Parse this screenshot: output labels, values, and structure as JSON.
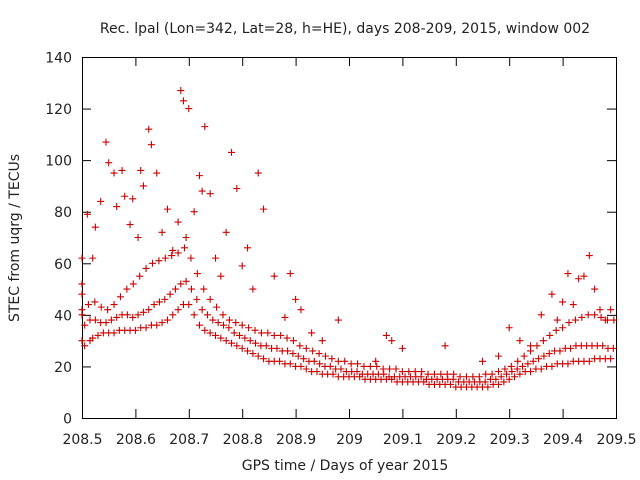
{
  "chart_data": {
    "type": "scatter",
    "title": "Rec. lpal (Lon=342, Lat=28, h=HE), days 208-209, 2015, window 002",
    "xlabel": "GPS time / Days of year 2015",
    "ylabel": "STEC from uqrg / TECUs",
    "xlim": [
      208.5,
      209.5
    ],
    "ylim": [
      0,
      140
    ],
    "xticks": [
      "208.5",
      "208.6",
      "208.7",
      "208.8",
      "208.9",
      "209",
      "209.1",
      "209.2",
      "209.3",
      "209.4",
      "209.5"
    ],
    "yticks": [
      "0",
      "20",
      "40",
      "60",
      "80",
      "100",
      "120",
      "140"
    ],
    "grid": false,
    "marker": "+",
    "color": "#cc0000",
    "series": [
      {
        "x": [
          208.5,
          208.5,
          208.5,
          208.5,
          208.505,
          208.515,
          208.52,
          208.53,
          208.54,
          208.55,
          208.56,
          208.57,
          208.58,
          208.59,
          208.6,
          208.61,
          208.62,
          208.63,
          208.64,
          208.65,
          208.66,
          208.67,
          208.68,
          208.69,
          208.7,
          208.71,
          208.72,
          208.73,
          208.74,
          208.75,
          208.76,
          208.77,
          208.78,
          208.79,
          208.8,
          208.81,
          208.82,
          208.83,
          208.84,
          208.85,
          208.86,
          208.87,
          208.88,
          208.89,
          208.9,
          208.91,
          208.92,
          208.93,
          208.94,
          208.95,
          208.96,
          208.97,
          208.98,
          208.99,
          209.0,
          209.01,
          209.02,
          209.03,
          209.04,
          209.05,
          209.06,
          209.07,
          209.08,
          209.09,
          209.1,
          209.11,
          209.12,
          209.13,
          209.14,
          209.15,
          209.16,
          209.17,
          209.18,
          209.19,
          209.2,
          209.21,
          209.22,
          209.23,
          209.24,
          209.25,
          209.26,
          209.27,
          209.28,
          209.29,
          209.3,
          209.31,
          209.32,
          209.33,
          209.34,
          209.35,
          209.36,
          209.37,
          209.38,
          209.39,
          209.4,
          209.41,
          209.42,
          209.43,
          209.44,
          209.45,
          209.46,
          209.47,
          209.48,
          209.49
        ],
        "y": [
          62,
          52,
          40,
          30,
          28,
          30,
          31,
          32,
          33,
          33,
          33,
          34,
          34,
          34,
          34,
          35,
          35,
          36,
          36,
          37,
          38,
          40,
          42,
          44,
          44,
          40,
          36,
          34,
          33,
          32,
          31,
          30,
          29,
          28,
          27,
          26,
          25,
          24,
          23,
          22,
          22,
          22,
          21,
          21,
          20,
          20,
          19,
          18,
          18,
          17,
          17,
          17,
          16,
          16,
          16,
          16,
          16,
          15,
          15,
          15,
          15,
          15,
          15,
          14,
          14,
          14,
          14,
          14,
          14,
          13,
          13,
          13,
          13,
          13,
          12,
          12,
          12,
          12,
          12,
          12,
          12,
          13,
          13,
          14,
          15,
          16,
          17,
          18,
          18,
          19,
          19,
          20,
          20,
          21,
          21,
          21,
          22,
          22,
          22,
          22,
          23,
          23,
          23,
          23
        ]
      },
      {
        "x": [
          208.505,
          208.515,
          208.525,
          208.535,
          208.545,
          208.555,
          208.565,
          208.575,
          208.585,
          208.595,
          208.605,
          208.615,
          208.625,
          208.635,
          208.645,
          208.655,
          208.665,
          208.675,
          208.685,
          208.695,
          208.705,
          208.715,
          208.725,
          208.735,
          208.745,
          208.755,
          208.765,
          208.775,
          208.785,
          208.795,
          208.805,
          208.815,
          208.825,
          208.835,
          208.845,
          208.855,
          208.865,
          208.875,
          208.885,
          208.895,
          208.905,
          208.915,
          208.925,
          208.935,
          208.945,
          208.955,
          208.965,
          208.975,
          208.985,
          208.995,
          209.005,
          209.015,
          209.025,
          209.035,
          209.045,
          209.055,
          209.065,
          209.075,
          209.085,
          209.095,
          209.105,
          209.115,
          209.125,
          209.135,
          209.145,
          209.155,
          209.165,
          209.175,
          209.185,
          209.195,
          209.205,
          209.215,
          209.225,
          209.235,
          209.245,
          209.255,
          209.265,
          209.275,
          209.285,
          209.295,
          209.305,
          209.315,
          209.325,
          209.335,
          209.345,
          209.355,
          209.365,
          209.375,
          209.385,
          209.395,
          209.405,
          209.415,
          209.425,
          209.435,
          209.445,
          209.455,
          209.465,
          209.475,
          209.485,
          209.495
        ],
        "y": [
          36,
          38,
          38,
          37,
          37,
          38,
          39,
          40,
          40,
          39,
          40,
          41,
          42,
          44,
          45,
          46,
          48,
          50,
          52,
          53,
          50,
          46,
          42,
          40,
          38,
          37,
          36,
          35,
          33,
          32,
          31,
          30,
          29,
          28,
          28,
          27,
          27,
          26,
          26,
          25,
          24,
          23,
          22,
          22,
          21,
          20,
          20,
          19,
          19,
          18,
          18,
          18,
          17,
          17,
          17,
          17,
          17,
          16,
          16,
          16,
          16,
          16,
          16,
          16,
          15,
          15,
          15,
          15,
          15,
          15,
          14,
          14,
          14,
          14,
          14,
          14,
          15,
          15,
          16,
          17,
          18,
          19,
          20,
          21,
          22,
          23,
          24,
          25,
          26,
          26,
          27,
          27,
          28,
          28,
          28,
          28,
          28,
          28,
          27,
          27
        ]
      },
      {
        "x": [
          208.5,
          208.512,
          208.524,
          208.536,
          208.548,
          208.56,
          208.572,
          208.584,
          208.596,
          208.608,
          208.62,
          208.632,
          208.644,
          208.656,
          208.668,
          208.68,
          208.692,
          208.704,
          208.716,
          208.728,
          208.74,
          208.752,
          208.764,
          208.776,
          208.788,
          208.8,
          208.812,
          208.824,
          208.836,
          208.848,
          208.86,
          208.872,
          208.884,
          208.896,
          208.908,
          208.92,
          208.932,
          208.944,
          208.956,
          208.968,
          208.98,
          208.992,
          209.004,
          209.016,
          209.028,
          209.04,
          209.052,
          209.064,
          209.076,
          209.088,
          209.1,
          209.112,
          209.124,
          209.136,
          209.148,
          209.16,
          209.172,
          209.184,
          209.196,
          209.208,
          209.22,
          209.232,
          209.244,
          209.256,
          209.268,
          209.28,
          209.292,
          209.304,
          209.316,
          209.328,
          209.34,
          209.352,
          209.364,
          209.376,
          209.388,
          209.4,
          209.412,
          209.424,
          209.436,
          209.448,
          209.46,
          209.472,
          209.484,
          209.496
        ],
        "y": [
          42,
          44,
          45,
          43,
          42,
          44,
          47,
          50,
          52,
          55,
          58,
          60,
          61,
          62,
          63,
          64,
          66,
          62,
          56,
          50,
          46,
          43,
          40,
          38,
          37,
          36,
          35,
          34,
          33,
          33,
          32,
          32,
          31,
          30,
          28,
          27,
          26,
          25,
          24,
          23,
          22,
          22,
          21,
          21,
          20,
          20,
          20,
          19,
          19,
          19,
          18,
          18,
          18,
          18,
          17,
          17,
          17,
          17,
          17,
          16,
          16,
          16,
          16,
          17,
          17,
          18,
          19,
          20,
          22,
          24,
          26,
          28,
          30,
          32,
          34,
          35,
          37,
          38,
          39,
          40,
          40,
          39,
          38,
          38
        ]
      },
      {
        "x": [
          208.5,
          208.51,
          208.52,
          208.525,
          208.535,
          208.545,
          208.55,
          208.56,
          208.565,
          208.575,
          208.58,
          208.59,
          208.595,
          208.605,
          208.61,
          208.615,
          208.625,
          208.63,
          208.64,
          208.65,
          208.66,
          208.67,
          208.68,
          208.685,
          208.69,
          208.695,
          208.7,
          208.71,
          208.72,
          208.725,
          208.73,
          208.74,
          208.75,
          208.76,
          208.77,
          208.78,
          208.79,
          208.8,
          208.81,
          208.82,
          208.83,
          208.84,
          208.86,
          208.88,
          208.89,
          208.9,
          208.91,
          208.93,
          208.95,
          208.98,
          209.05,
          209.07,
          209.08,
          209.1,
          209.18,
          209.25,
          209.28,
          209.3,
          209.32,
          209.34,
          209.36,
          209.38,
          209.39,
          209.4,
          209.41,
          209.42,
          209.43,
          209.44,
          209.45,
          209.46,
          209.47,
          209.48,
          209.49
        ],
        "y": [
          48,
          79,
          62,
          74,
          84,
          107,
          99,
          95,
          82,
          96,
          86,
          75,
          85,
          70,
          96,
          90,
          112,
          106,
          95,
          72,
          81,
          65,
          76,
          127,
          123,
          70,
          120,
          80,
          94,
          88,
          113,
          87,
          62,
          55,
          72,
          103,
          89,
          59,
          66,
          50,
          95,
          81,
          55,
          39,
          56,
          46,
          42,
          33,
          30,
          38,
          22,
          32,
          30,
          27,
          28,
          22,
          24,
          35,
          30,
          28,
          40,
          48,
          38,
          45,
          56,
          44,
          54,
          55,
          63,
          50,
          42,
          38,
          42
        ]
      }
    ]
  }
}
